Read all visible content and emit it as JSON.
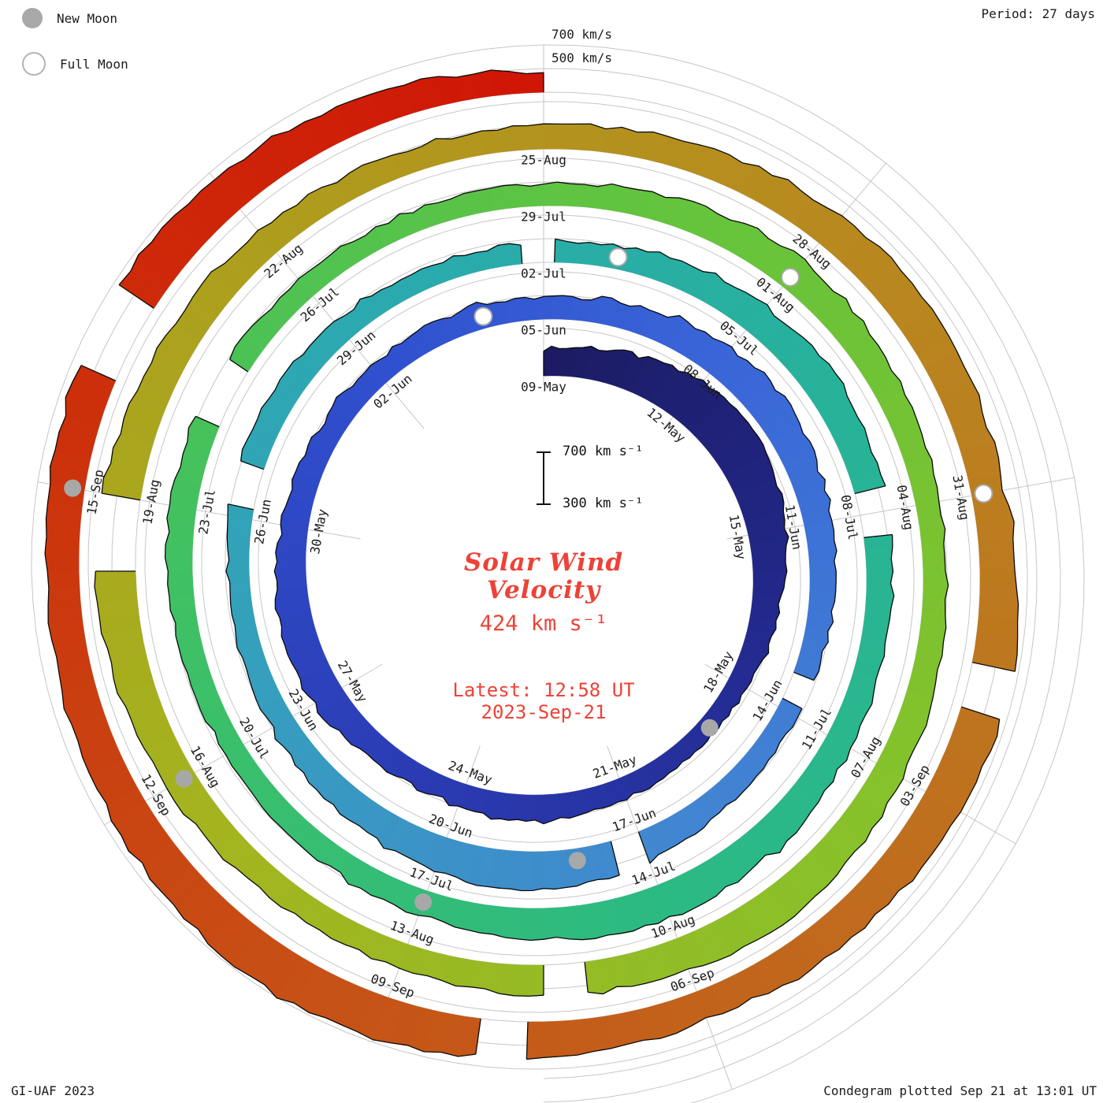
{
  "header": {
    "period_label": "Period: 27 days"
  },
  "legend": {
    "new_moon": "New Moon",
    "full_moon": "Full Moon"
  },
  "outer_scale": {
    "l700": "700 km/s",
    "l500": "500 km/s"
  },
  "center": {
    "title_line1": "Solar Wind",
    "title_line2": "Velocity",
    "current_value": "424 km s⁻¹",
    "latest_line1": "Latest: 12:58 UT",
    "latest_line2": "2023-Sep-21",
    "bar_top_label": "700 km s⁻¹",
    "bar_bottom_label": "300 km s⁻¹"
  },
  "footer": {
    "left": "GI-UAF 2023",
    "right": "Condegram plotted Sep 21 at 13:01 UT"
  },
  "colors": {
    "accent_red": "#ee4237",
    "moon_gray": "#a8a8a8",
    "grid_gray": "#c6c6c6"
  },
  "chart_data": {
    "type": "line",
    "subtype": "spiral_condegram",
    "title": "Solar Wind Velocity",
    "unit": "km s⁻¹",
    "period_days": 27,
    "start_date": "2023-05-09",
    "total_days": 135,
    "tick_interval_days": 3,
    "ylim": [
      300,
      700
    ],
    "radial_gridlines_kms": [
      300,
      500,
      700
    ],
    "grid": true,
    "legend_position": "top-left",
    "latest": {
      "velocity_kms": 424,
      "time_ut": "12:58",
      "date": "2023-09-21"
    },
    "rotations": [
      {
        "start_date": "2023-05-09",
        "daily_velocity": [
          470,
          510,
          560,
          620,
          660,
          615,
          555,
          505,
          460,
          425,
          408,
          418,
          435,
          455,
          465,
          445,
          430,
          468,
          512,
          535,
          505,
          472,
          452,
          440,
          432,
          448,
          442
        ]
      },
      {
        "start_date": "2023-06-05",
        "daily_velocity": [
          430,
          452,
          483,
          522,
          545,
          512,
          482,
          460,
          441,
          428,
          433,
          455,
          502,
          552,
          572,
          541,
          502,
          471,
          451,
          432,
          421,
          441,
          462,
          451,
          431,
          421,
          412
        ]
      },
      {
        "start_date": "2023-07-02",
        "daily_velocity": [
          421,
          442,
          471,
          502,
          532,
          512,
          482,
          461,
          451,
          471,
          501,
          521,
          541,
          521,
          491,
          462,
          441,
          431,
          421,
          432,
          451,
          471,
          461,
          441,
          431,
          421,
          431
        ]
      },
      {
        "start_date": "2023-07-29",
        "daily_velocity": [
          441,
          461,
          491,
          521,
          501,
          471,
          451,
          441,
          461,
          491,
          531,
          561,
          541,
          511,
          481,
          461,
          451,
          471,
          501,
          541,
          581,
          561,
          531,
          501,
          471,
          451,
          441
        ]
      },
      {
        "start_date": "2023-08-25",
        "daily_velocity": [
          451,
          471,
          501,
          531,
          561,
          541,
          521,
          561,
          601,
          581,
          551,
          521,
          501,
          521,
          561,
          601,
          621,
          591,
          561,
          531,
          511,
          541,
          571,
          591,
          571,
          531,
          491
        ]
      }
    ],
    "tick_labels": [
      "09-May",
      "12-May",
      "15-May",
      "18-May",
      "21-May",
      "24-May",
      "27-May",
      "30-May",
      "02-Jun",
      "05-Jun",
      "08-Jun",
      "11-Jun",
      "14-Jun",
      "17-Jun",
      "20-Jun",
      "23-Jun",
      "26-Jun",
      "29-Jun",
      "02-Jul",
      "05-Jul",
      "08-Jul",
      "11-Jul",
      "14-Jul",
      "17-Jul",
      "20-Jul",
      "23-Jul",
      "26-Jul",
      "29-Jul",
      "01-Aug",
      "04-Aug",
      "07-Aug",
      "10-Aug",
      "13-Aug",
      "16-Aug",
      "19-Aug",
      "22-Aug",
      "25-Aug",
      "28-Aug",
      "31-Aug",
      "03-Sep",
      "06-Sep",
      "09-Sep",
      "12-Sep",
      "15-Sep"
    ],
    "moons": {
      "new_moon_dates": [
        "2023-05-19",
        "2023-06-18",
        "2023-07-17",
        "2023-08-16",
        "2023-09-15"
      ],
      "full_moon_dates": [
        "2023-06-04",
        "2023-07-03",
        "2023-08-01",
        "2023-08-31"
      ]
    },
    "data_gaps": [
      [
        35.4,
        35.75
      ],
      [
        39.0,
        39.3
      ],
      [
        48.2,
        48.6
      ],
      [
        53.8,
        54.1
      ],
      [
        59.8,
        60.15
      ],
      [
        76.2,
        76.7
      ],
      [
        94.2,
        94.5
      ],
      [
        101.3,
        101.9
      ],
      [
        115.8,
        116.1
      ],
      [
        121.8,
        122.1
      ],
      [
        130.1,
        130.8
      ]
    ],
    "color_stops": [
      [
        0,
        "#1c1b63"
      ],
      [
        8,
        "#232a8f"
      ],
      [
        16,
        "#2b3cb4"
      ],
      [
        24,
        "#3050cf"
      ],
      [
        30,
        "#3a66d8"
      ],
      [
        38,
        "#4285d2"
      ],
      [
        46,
        "#35a0bc"
      ],
      [
        52,
        "#2aaaae"
      ],
      [
        58,
        "#27b29b"
      ],
      [
        66,
        "#2cba83"
      ],
      [
        74,
        "#3fc163"
      ],
      [
        82,
        "#62c43e"
      ],
      [
        90,
        "#85c22b"
      ],
      [
        98,
        "#a3b51f"
      ],
      [
        106,
        "#b09a1d"
      ],
      [
        112,
        "#b9861f"
      ],
      [
        118,
        "#c06c1e"
      ],
      [
        124,
        "#c74f15"
      ],
      [
        129,
        "#cc330c"
      ],
      [
        135,
        "#d01505"
      ]
    ]
  }
}
